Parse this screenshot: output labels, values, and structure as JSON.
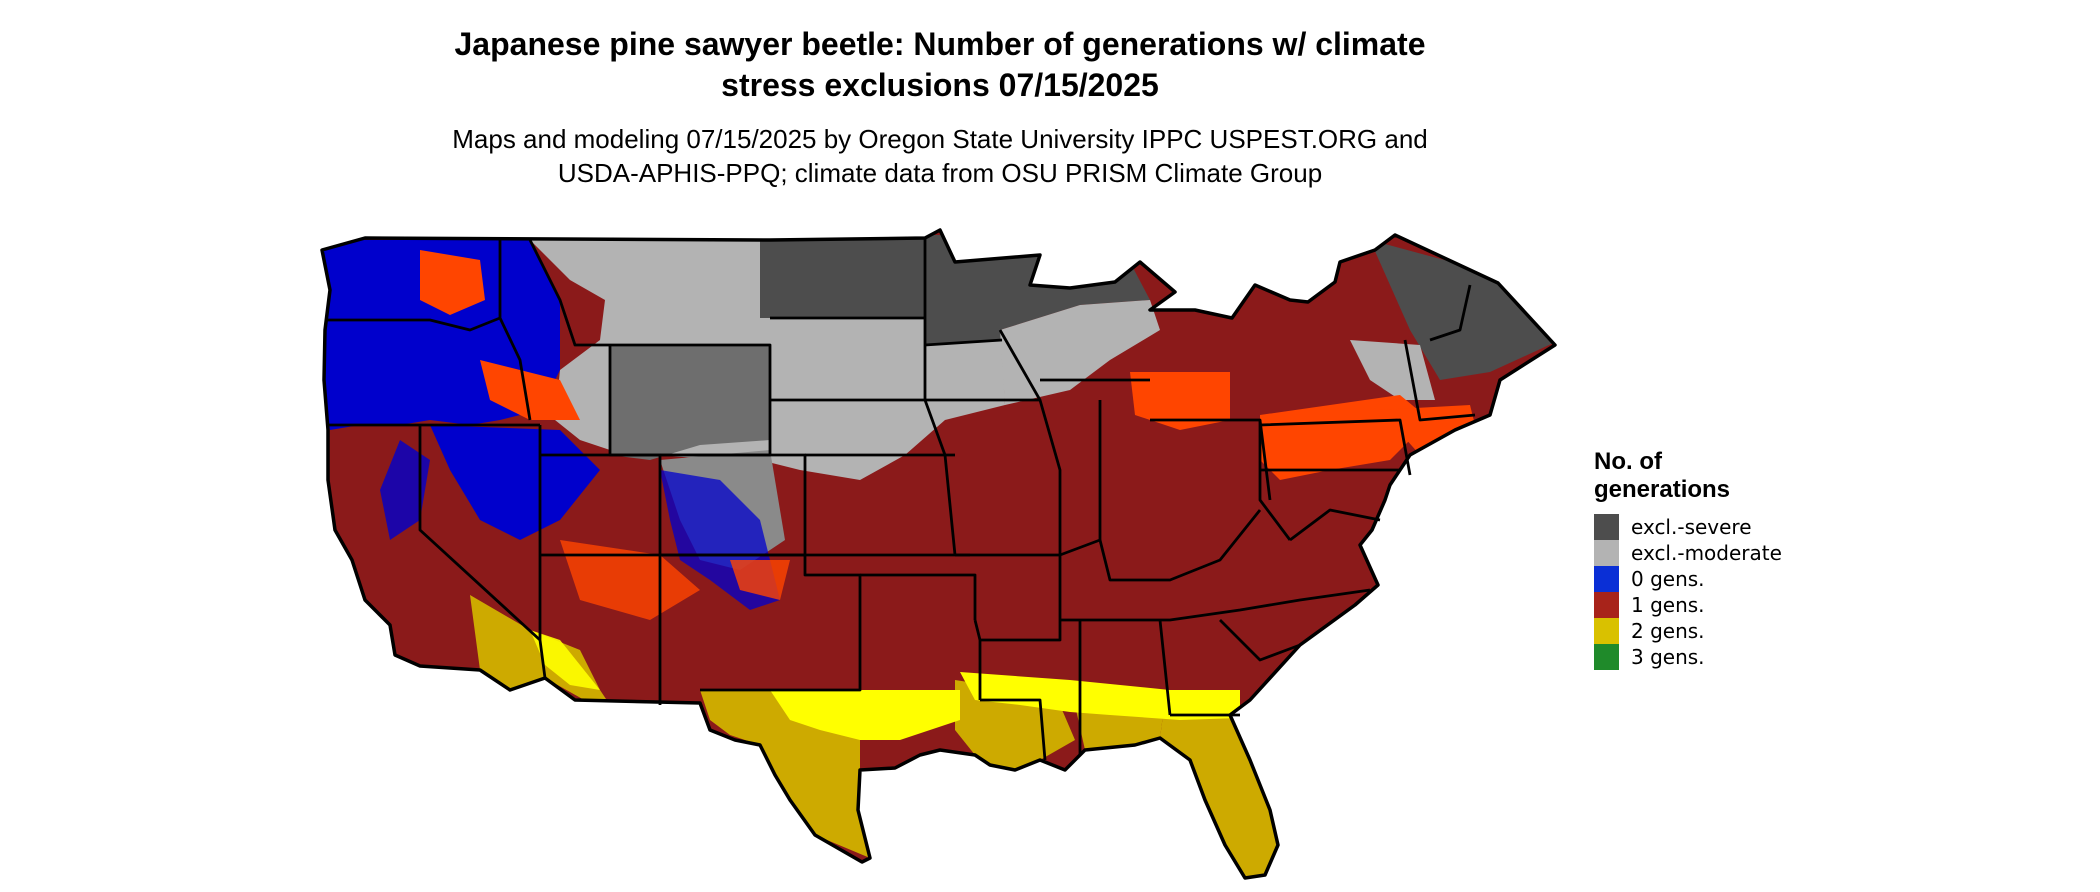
{
  "title_lines": [
    "Japanese pine sawyer beetle: Number of generations w/ climate",
    "stress exclusions 07/15/2025"
  ],
  "subtitle_lines": [
    "Maps and modeling 07/15/2025 by Oregon State University IPPC USPEST.ORG and",
    "USDA-APHIS-PPQ; climate data from OSU PRISM Climate Group"
  ],
  "legend": {
    "title_lines": [
      "No. of",
      "generations"
    ],
    "items": [
      {
        "label": "excl.-severe",
        "color": "#4d4d4d"
      },
      {
        "label": "excl.-moderate",
        "color": "#b3b3b3"
      },
      {
        "label": "0 gens.",
        "color": "#0a2fd6"
      },
      {
        "label": "1 gens.",
        "color": "#a8231a"
      },
      {
        "label": "2 gens.",
        "color": "#d9c100"
      },
      {
        "label": "3 gens.",
        "color": "#1f8a2a"
      }
    ]
  },
  "map": {
    "region": "Contiguous United States",
    "colors": {
      "severe": "#4d4d4d",
      "moderate": "#b3b3b3",
      "zero": "#0000cc",
      "one": "#8b1a1a",
      "one_highlight": "#ff4500",
      "two": "#cdaa00",
      "two_light": "#ffff00",
      "borders": "#000000"
    }
  }
}
